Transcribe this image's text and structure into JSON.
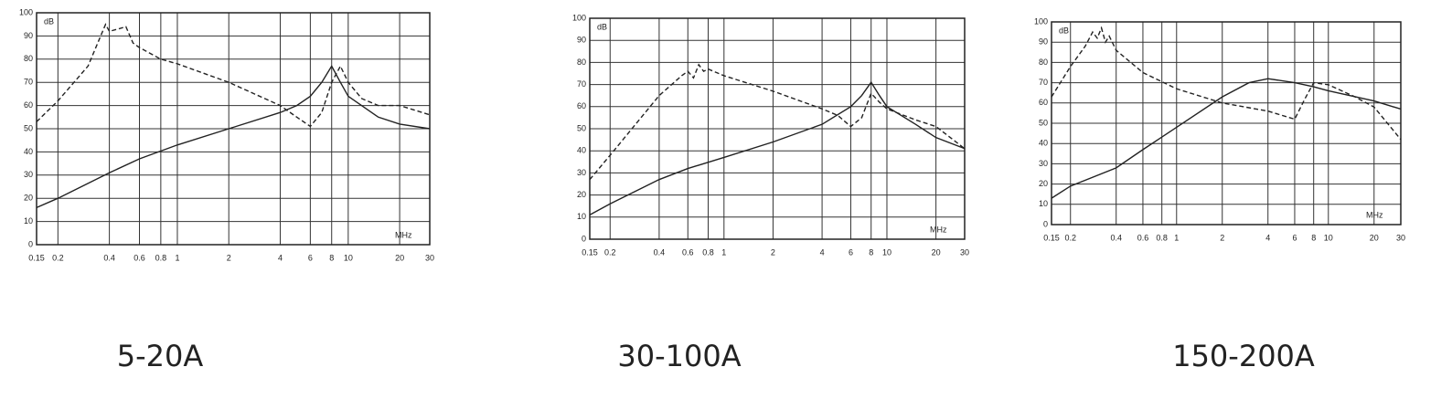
{
  "chart_data": [
    {
      "type": "line",
      "title": "5-20A",
      "ylabel": "dB",
      "xlabel": "MHz",
      "xscale": "log",
      "grid": true,
      "xlim": [
        0.15,
        30
      ],
      "xticks": [
        0.15,
        0.2,
        0.4,
        0.6,
        0.8,
        1,
        2,
        4,
        6,
        8,
        10,
        20,
        30
      ],
      "ylim": [
        0,
        100
      ],
      "yticks": [
        0,
        10,
        20,
        30,
        40,
        50,
        60,
        70,
        80,
        90,
        100
      ],
      "series": [
        {
          "color": "#222222",
          "dash": false,
          "x": [
            0.15,
            0.2,
            0.4,
            0.6,
            1,
            2,
            4,
            5,
            6,
            7,
            8,
            9,
            10,
            15,
            20,
            30
          ],
          "values": [
            16,
            20,
            31,
            37,
            43,
            50,
            57,
            60,
            64,
            70,
            77,
            70,
            64,
            55,
            52,
            50
          ]
        },
        {
          "color": "#222222",
          "dash": true,
          "x": [
            0.15,
            0.2,
            0.3,
            0.38,
            0.4,
            0.45,
            0.5,
            0.55,
            0.6,
            0.8,
            1,
            2,
            4,
            5,
            6,
            7,
            8,
            9,
            10,
            12,
            15,
            20,
            30
          ],
          "values": [
            53,
            62,
            77,
            95,
            92,
            93,
            94,
            87,
            85,
            80,
            78,
            70,
            60,
            55,
            51,
            57,
            70,
            77,
            70,
            63,
            60,
            60,
            56
          ]
        }
      ]
    },
    {
      "type": "line",
      "title": "30-100A",
      "ylabel": "dB",
      "xlabel": "MHz",
      "xscale": "log",
      "grid": true,
      "xlim": [
        0.15,
        30
      ],
      "xticks": [
        0.15,
        0.2,
        0.4,
        0.6,
        0.8,
        1,
        2,
        4,
        6,
        8,
        10,
        20,
        30
      ],
      "ylim": [
        0,
        100
      ],
      "yticks": [
        0,
        10,
        20,
        30,
        40,
        50,
        60,
        70,
        80,
        90,
        100
      ],
      "series": [
        {
          "color": "#222222",
          "dash": false,
          "x": [
            0.15,
            0.2,
            0.4,
            0.6,
            1,
            2,
            4,
            6,
            7,
            8,
            9,
            10,
            15,
            20,
            30
          ],
          "values": [
            11,
            16,
            27,
            32,
            37,
            44,
            52,
            60,
            65,
            71,
            65,
            60,
            52,
            46,
            41
          ]
        },
        {
          "color": "#222222",
          "dash": true,
          "x": [
            0.15,
            0.2,
            0.4,
            0.55,
            0.6,
            0.65,
            0.7,
            0.75,
            0.8,
            1,
            2,
            4,
            5,
            6,
            7,
            8,
            9,
            10,
            15,
            20,
            30
          ],
          "values": [
            27,
            38,
            65,
            74,
            76,
            73,
            79,
            76,
            77,
            74,
            67,
            59,
            56,
            51,
            55,
            66,
            62,
            59,
            54,
            51,
            41
          ]
        }
      ]
    },
    {
      "type": "line",
      "title": "150-200A",
      "ylabel": "dB",
      "xlabel": "MHz",
      "xscale": "log",
      "grid": true,
      "xlim": [
        0.15,
        30
      ],
      "xticks": [
        0.15,
        0.2,
        0.4,
        0.6,
        0.8,
        1,
        2,
        4,
        6,
        8,
        10,
        20,
        30
      ],
      "ylim": [
        0,
        100
      ],
      "yticks": [
        0,
        10,
        20,
        30,
        40,
        50,
        60,
        70,
        80,
        90,
        100
      ],
      "series": [
        {
          "color": "#222222",
          "dash": false,
          "x": [
            0.15,
            0.2,
            0.4,
            0.6,
            1,
            2,
            3,
            4,
            6,
            8,
            10,
            20,
            30
          ],
          "values": [
            13,
            19,
            28,
            37,
            48,
            63,
            70,
            72,
            70,
            68,
            66,
            61,
            57
          ]
        },
        {
          "color": "#222222",
          "dash": true,
          "x": [
            0.15,
            0.2,
            0.25,
            0.28,
            0.3,
            0.32,
            0.34,
            0.36,
            0.4,
            0.6,
            1,
            2,
            4,
            6,
            7,
            8,
            10,
            15,
            20,
            30
          ],
          "values": [
            63,
            78,
            88,
            95,
            92,
            97,
            90,
            93,
            86,
            75,
            67,
            60,
            56,
            52,
            62,
            70,
            69,
            63,
            58,
            42
          ]
        }
      ]
    }
  ]
}
